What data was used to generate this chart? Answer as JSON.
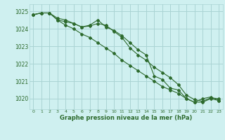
{
  "title": "Graphe pression niveau de la mer (hPa)",
  "background_color": "#cff0f0",
  "grid_color": "#aad4d4",
  "line_color": "#2d6a2d",
  "xlim": [
    -0.5,
    23.5
  ],
  "ylim": [
    1019.4,
    1025.4
  ],
  "yticks": [
    1020,
    1021,
    1022,
    1023,
    1024,
    1025
  ],
  "xticks": [
    0,
    1,
    2,
    3,
    4,
    5,
    6,
    7,
    8,
    9,
    10,
    11,
    12,
    13,
    14,
    15,
    16,
    17,
    18,
    19,
    20,
    21,
    22,
    23
  ],
  "series1": [
    1024.8,
    1024.9,
    1024.9,
    1024.6,
    1024.5,
    1024.3,
    1024.1,
    1024.2,
    1024.5,
    1024.1,
    1023.9,
    1023.6,
    1023.2,
    1022.8,
    1022.5,
    1021.3,
    1021.1,
    1020.6,
    1020.5,
    1020.0,
    1019.8,
    1020.0,
    1020.1,
    1019.9
  ],
  "series2": [
    1024.8,
    1024.9,
    1024.9,
    1024.5,
    1024.4,
    1024.3,
    1024.1,
    1024.15,
    1024.3,
    1024.2,
    1023.85,
    1023.5,
    1022.9,
    1022.5,
    1022.2,
    1021.8,
    1021.5,
    1021.2,
    1020.8,
    1020.2,
    1019.95,
    1019.85,
    1020.05,
    1020.0
  ],
  "series3": [
    1024.8,
    1024.9,
    1024.9,
    1024.5,
    1024.2,
    1024.0,
    1023.7,
    1023.5,
    1023.2,
    1022.9,
    1022.6,
    1022.2,
    1021.9,
    1021.6,
    1021.3,
    1021.0,
    1020.7,
    1020.5,
    1020.3,
    1020.0,
    1019.8,
    1019.8,
    1020.0,
    1019.9
  ]
}
